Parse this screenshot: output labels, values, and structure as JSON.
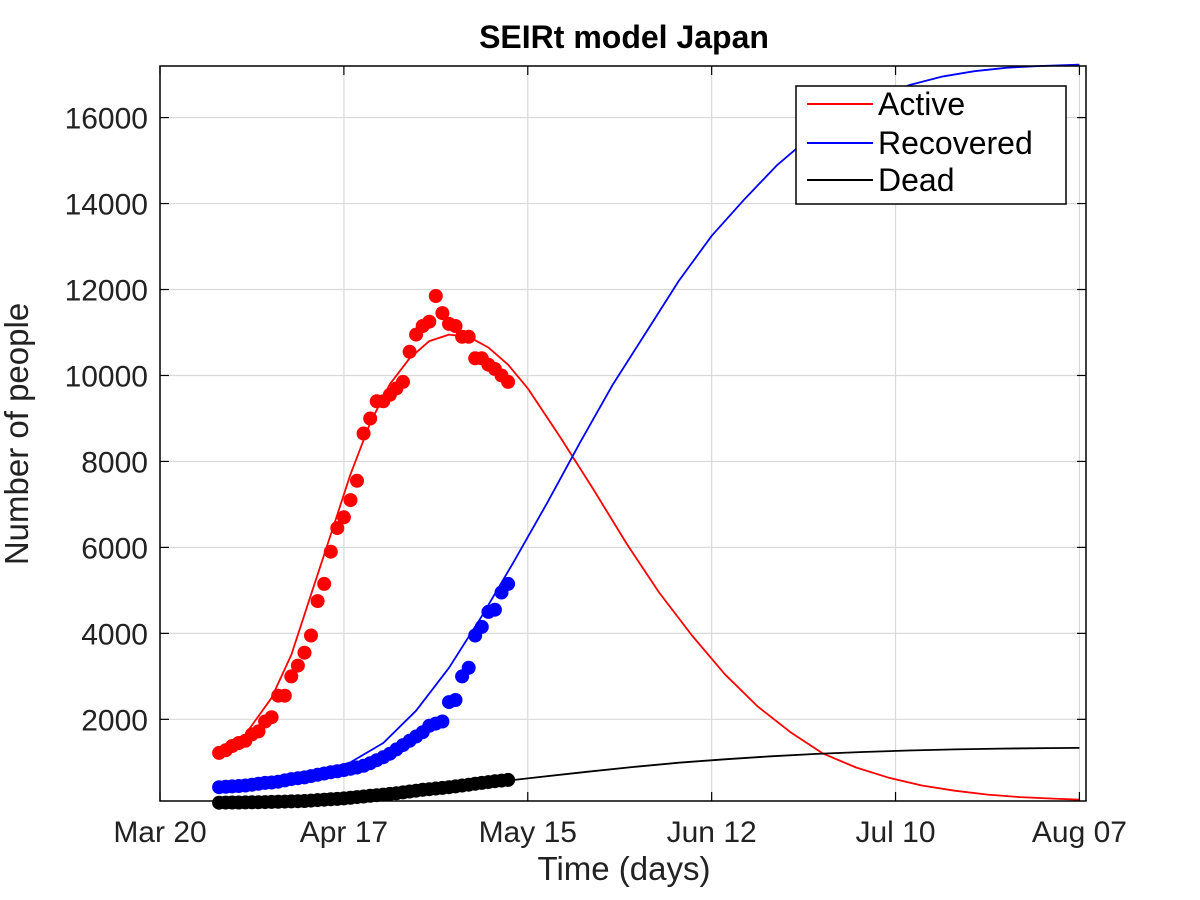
{
  "chart_data": {
    "type": "line",
    "title": "SEIRt model Japan",
    "xlabel": "Time (days)",
    "ylabel": "Number of people",
    "x_ticks": [
      {
        "date": "2020-03-20",
        "label": "Mar 20"
      },
      {
        "date": "2020-04-17",
        "label": "Apr 17"
      },
      {
        "date": "2020-05-15",
        "label": "May 15"
      },
      {
        "date": "2020-06-12",
        "label": "Jun 12"
      },
      {
        "date": "2020-07-10",
        "label": "Jul 10"
      },
      {
        "date": "2020-08-07",
        "label": "Aug 07"
      }
    ],
    "y_ticks": [
      "2000",
      "4000",
      "6000",
      "8000",
      "10000",
      "12000",
      "14000",
      "16000"
    ],
    "xlim": [
      "2020-03-20",
      "2020-08-08"
    ],
    "ylim": [
      100,
      17200
    ],
    "grid": true,
    "legend_position": "top-right",
    "series": [
      {
        "name": "Active",
        "color": "#ff0000",
        "line": [
          [
            "2020-03-29",
            1150
          ],
          [
            "2020-04-02",
            1650
          ],
          [
            "2020-04-06",
            2500
          ],
          [
            "2020-04-09",
            3500
          ],
          [
            "2020-04-12",
            4900
          ],
          [
            "2020-04-15",
            6300
          ],
          [
            "2020-04-18",
            7700
          ],
          [
            "2020-04-21",
            8900
          ],
          [
            "2020-04-24",
            9800
          ],
          [
            "2020-04-27",
            10400
          ],
          [
            "2020-04-30",
            10800
          ],
          [
            "2020-05-03",
            10950
          ],
          [
            "2020-05-06",
            10900
          ],
          [
            "2020-05-09",
            10650
          ],
          [
            "2020-05-12",
            10250
          ],
          [
            "2020-05-15",
            9700
          ],
          [
            "2020-05-20",
            8550
          ],
          [
            "2020-05-25",
            7350
          ],
          [
            "2020-05-30",
            6100
          ],
          [
            "2020-06-04",
            4950
          ],
          [
            "2020-06-09",
            3950
          ],
          [
            "2020-06-14",
            3050
          ],
          [
            "2020-06-19",
            2300
          ],
          [
            "2020-06-24",
            1700
          ],
          [
            "2020-06-29",
            1200
          ],
          [
            "2020-07-04",
            880
          ],
          [
            "2020-07-09",
            640
          ],
          [
            "2020-07-14",
            460
          ],
          [
            "2020-07-19",
            340
          ],
          [
            "2020-07-24",
            250
          ],
          [
            "2020-07-29",
            190
          ],
          [
            "2020-08-03",
            155
          ],
          [
            "2020-08-07",
            130
          ]
        ],
        "points": [
          [
            "2020-03-29",
            1220
          ],
          [
            "2020-03-30",
            1280
          ],
          [
            "2020-03-31",
            1380
          ],
          [
            "2020-04-01",
            1450
          ],
          [
            "2020-04-02",
            1500
          ],
          [
            "2020-04-03",
            1650
          ],
          [
            "2020-04-04",
            1720
          ],
          [
            "2020-04-05",
            1950
          ],
          [
            "2020-04-06",
            2050
          ],
          [
            "2020-04-07",
            2550
          ],
          [
            "2020-04-08",
            2550
          ],
          [
            "2020-04-09",
            3000
          ],
          [
            "2020-04-10",
            3250
          ],
          [
            "2020-04-11",
            3550
          ],
          [
            "2020-04-12",
            3950
          ],
          [
            "2020-04-13",
            4750
          ],
          [
            "2020-04-14",
            5150
          ],
          [
            "2020-04-15",
            5900
          ],
          [
            "2020-04-16",
            6450
          ],
          [
            "2020-04-17",
            6700
          ],
          [
            "2020-04-18",
            7100
          ],
          [
            "2020-04-19",
            7550
          ],
          [
            "2020-04-20",
            8650
          ],
          [
            "2020-04-21",
            9000
          ],
          [
            "2020-04-22",
            9400
          ],
          [
            "2020-04-23",
            9400
          ],
          [
            "2020-04-24",
            9550
          ],
          [
            "2020-04-25",
            9700
          ],
          [
            "2020-04-26",
            9850
          ],
          [
            "2020-04-27",
            10550
          ],
          [
            "2020-04-28",
            10950
          ],
          [
            "2020-04-29",
            11150
          ],
          [
            "2020-04-30",
            11250
          ],
          [
            "2020-05-01",
            11850
          ],
          [
            "2020-05-02",
            11450
          ],
          [
            "2020-05-03",
            11200
          ],
          [
            "2020-05-04",
            11150
          ],
          [
            "2020-05-05",
            10900
          ],
          [
            "2020-05-06",
            10900
          ],
          [
            "2020-05-07",
            10400
          ],
          [
            "2020-05-08",
            10400
          ],
          [
            "2020-05-09",
            10250
          ],
          [
            "2020-05-10",
            10150
          ],
          [
            "2020-05-11",
            10000
          ],
          [
            "2020-05-12",
            9850
          ]
        ]
      },
      {
        "name": "Recovered",
        "color": "#0000ff",
        "line": [
          [
            "2020-03-29",
            450
          ],
          [
            "2020-04-03",
            520
          ],
          [
            "2020-04-08",
            620
          ],
          [
            "2020-04-13",
            770
          ],
          [
            "2020-04-18",
            1000
          ],
          [
            "2020-04-23",
            1450
          ],
          [
            "2020-04-28",
            2200
          ],
          [
            "2020-05-03",
            3200
          ],
          [
            "2020-05-08",
            4400
          ],
          [
            "2020-05-13",
            5700
          ],
          [
            "2020-05-18",
            7050
          ],
          [
            "2020-05-23",
            8450
          ],
          [
            "2020-05-28",
            9800
          ],
          [
            "2020-06-02",
            11000
          ],
          [
            "2020-06-07",
            12200
          ],
          [
            "2020-06-12",
            13250
          ],
          [
            "2020-06-17",
            14100
          ],
          [
            "2020-06-22",
            14900
          ],
          [
            "2020-06-27",
            15550
          ],
          [
            "2020-07-02",
            16050
          ],
          [
            "2020-07-07",
            16450
          ],
          [
            "2020-07-12",
            16750
          ],
          [
            "2020-07-17",
            16950
          ],
          [
            "2020-07-22",
            17080
          ],
          [
            "2020-07-27",
            17160
          ],
          [
            "2020-08-01",
            17200
          ],
          [
            "2020-08-07",
            17230
          ]
        ],
        "points": [
          [
            "2020-03-29",
            420
          ],
          [
            "2020-03-30",
            430
          ],
          [
            "2020-03-31",
            440
          ],
          [
            "2020-04-01",
            450
          ],
          [
            "2020-04-02",
            460
          ],
          [
            "2020-04-03",
            480
          ],
          [
            "2020-04-04",
            500
          ],
          [
            "2020-04-05",
            520
          ],
          [
            "2020-04-06",
            530
          ],
          [
            "2020-04-07",
            550
          ],
          [
            "2020-04-08",
            580
          ],
          [
            "2020-04-09",
            610
          ],
          [
            "2020-04-10",
            630
          ],
          [
            "2020-04-11",
            650
          ],
          [
            "2020-04-12",
            680
          ],
          [
            "2020-04-13",
            710
          ],
          [
            "2020-04-14",
            740
          ],
          [
            "2020-04-15",
            770
          ],
          [
            "2020-04-16",
            790
          ],
          [
            "2020-04-17",
            820
          ],
          [
            "2020-04-18",
            850
          ],
          [
            "2020-04-19",
            880
          ],
          [
            "2020-04-20",
            920
          ],
          [
            "2020-04-21",
            980
          ],
          [
            "2020-04-22",
            1050
          ],
          [
            "2020-04-23",
            1120
          ],
          [
            "2020-04-24",
            1200
          ],
          [
            "2020-04-25",
            1300
          ],
          [
            "2020-04-26",
            1400
          ],
          [
            "2020-04-27",
            1500
          ],
          [
            "2020-04-28",
            1600
          ],
          [
            "2020-04-29",
            1700
          ],
          [
            "2020-04-30",
            1850
          ],
          [
            "2020-05-01",
            1900
          ],
          [
            "2020-05-02",
            1950
          ],
          [
            "2020-05-03",
            2400
          ],
          [
            "2020-05-04",
            2450
          ],
          [
            "2020-05-05",
            3000
          ],
          [
            "2020-05-06",
            3200
          ],
          [
            "2020-05-07",
            3950
          ],
          [
            "2020-05-08",
            4150
          ],
          [
            "2020-05-09",
            4500
          ],
          [
            "2020-05-10",
            4550
          ],
          [
            "2020-05-11",
            4950
          ],
          [
            "2020-05-12",
            5150
          ]
        ]
      },
      {
        "name": "Dead",
        "color": "#000000",
        "line": [
          [
            "2020-03-29",
            70
          ],
          [
            "2020-04-05",
            90
          ],
          [
            "2020-04-12",
            130
          ],
          [
            "2020-04-19",
            200
          ],
          [
            "2020-04-26",
            300
          ],
          [
            "2020-05-03",
            420
          ],
          [
            "2020-05-10",
            540
          ],
          [
            "2020-05-17",
            660
          ],
          [
            "2020-05-24",
            780
          ],
          [
            "2020-05-31",
            890
          ],
          [
            "2020-06-07",
            990
          ],
          [
            "2020-06-14",
            1070
          ],
          [
            "2020-06-21",
            1140
          ],
          [
            "2020-06-28",
            1195
          ],
          [
            "2020-07-05",
            1240
          ],
          [
            "2020-07-12",
            1275
          ],
          [
            "2020-07-19",
            1300
          ],
          [
            "2020-07-26",
            1320
          ],
          [
            "2020-08-02",
            1330
          ],
          [
            "2020-08-07",
            1335
          ]
        ],
        "points": [
          [
            "2020-03-29",
            60
          ],
          [
            "2020-03-30",
            62
          ],
          [
            "2020-03-31",
            64
          ],
          [
            "2020-04-01",
            66
          ],
          [
            "2020-04-02",
            68
          ],
          [
            "2020-04-03",
            70
          ],
          [
            "2020-04-04",
            72
          ],
          [
            "2020-04-05",
            74
          ],
          [
            "2020-04-06",
            78
          ],
          [
            "2020-04-07",
            82
          ],
          [
            "2020-04-08",
            86
          ],
          [
            "2020-04-09",
            90
          ],
          [
            "2020-04-10",
            95
          ],
          [
            "2020-04-11",
            100
          ],
          [
            "2020-04-12",
            110
          ],
          [
            "2020-04-13",
            120
          ],
          [
            "2020-04-14",
            130
          ],
          [
            "2020-04-15",
            140
          ],
          [
            "2020-04-16",
            150
          ],
          [
            "2020-04-17",
            160
          ],
          [
            "2020-04-18",
            175
          ],
          [
            "2020-04-19",
            190
          ],
          [
            "2020-04-20",
            205
          ],
          [
            "2020-04-21",
            220
          ],
          [
            "2020-04-22",
            235
          ],
          [
            "2020-04-23",
            250
          ],
          [
            "2020-04-24",
            265
          ],
          [
            "2020-04-25",
            280
          ],
          [
            "2020-04-26",
            300
          ],
          [
            "2020-04-27",
            320
          ],
          [
            "2020-04-28",
            340
          ],
          [
            "2020-04-29",
            360
          ],
          [
            "2020-04-30",
            375
          ],
          [
            "2020-05-01",
            390
          ],
          [
            "2020-05-02",
            405
          ],
          [
            "2020-05-03",
            420
          ],
          [
            "2020-05-04",
            440
          ],
          [
            "2020-05-05",
            460
          ],
          [
            "2020-05-06",
            480
          ],
          [
            "2020-05-07",
            500
          ],
          [
            "2020-05-08",
            520
          ],
          [
            "2020-05-09",
            540
          ],
          [
            "2020-05-10",
            560
          ],
          [
            "2020-05-11",
            575
          ],
          [
            "2020-05-12",
            590
          ]
        ]
      }
    ]
  }
}
